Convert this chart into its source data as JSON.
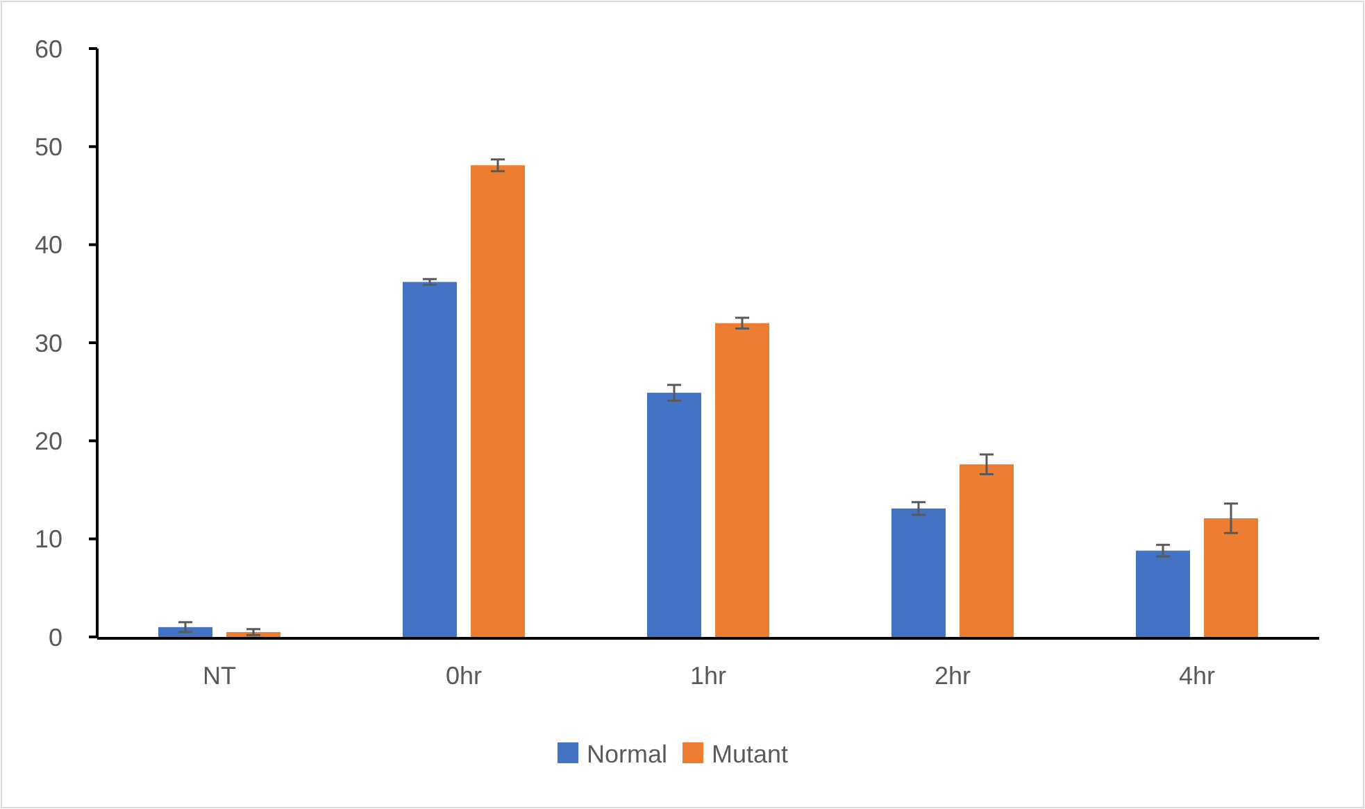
{
  "chart_data": {
    "type": "bar",
    "categories": [
      "NT",
      "0hr",
      "1hr",
      "2hr",
      "4hr"
    ],
    "series": [
      {
        "name": "Normal",
        "color": "#4472c4",
        "values": [
          1.0,
          36.2,
          24.9,
          13.1,
          8.8
        ],
        "errors": [
          0.5,
          0.3,
          0.8,
          0.65,
          0.6
        ]
      },
      {
        "name": "Mutant",
        "color": "#ed7d31",
        "values": [
          0.5,
          48.1,
          32.0,
          17.6,
          12.1
        ],
        "errors": [
          0.3,
          0.6,
          0.55,
          1.0,
          1.5
        ]
      }
    ],
    "ylim": [
      0,
      60
    ],
    "yticks": [
      0,
      10,
      20,
      30,
      40,
      50,
      60
    ],
    "grid": false,
    "legend": "bottom"
  }
}
